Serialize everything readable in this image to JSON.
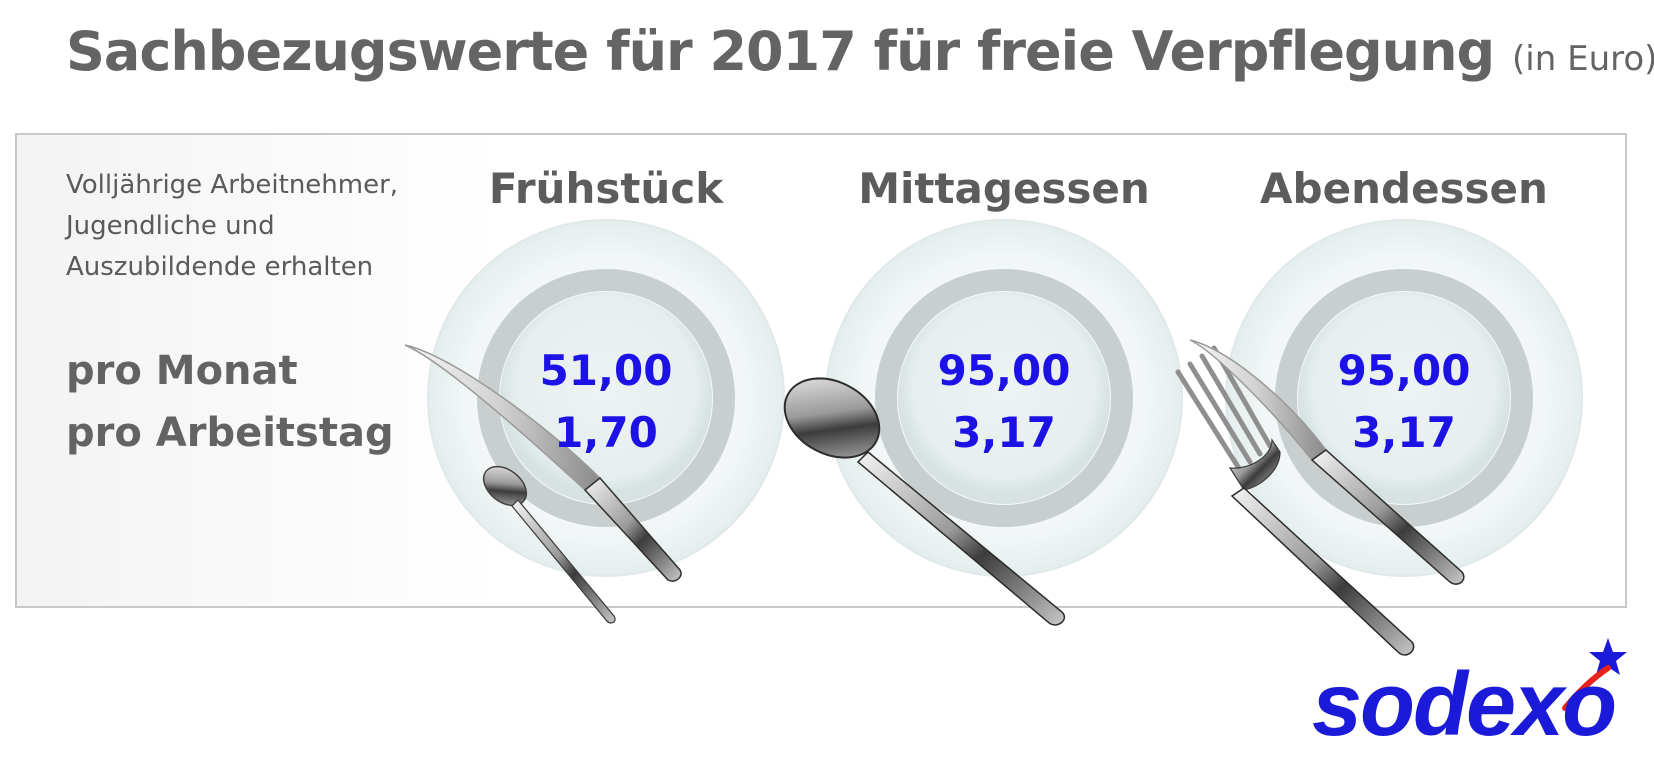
{
  "title": {
    "main": "Sachbezugswerte für 2017 für freie Verpflegung",
    "unit": "(in Euro)"
  },
  "intro": "Volljährige Arbeitnehmer, Jugendliche und Auszubildende erhalten",
  "row_labels": {
    "month": "pro Monat",
    "day": "pro Arbeitstag"
  },
  "meals": [
    {
      "name": "Frühstück",
      "per_month": "51,00",
      "per_day": "1,70"
    },
    {
      "name": "Mittagessen",
      "per_month": "95,00",
      "per_day": "3,17"
    },
    {
      "name": "Abendessen",
      "per_month": "95,00",
      "per_day": "3,17"
    }
  ],
  "colors": {
    "title": "#646464",
    "values": "#1c12e6",
    "logo": "#1a1ad8",
    "logo_star": "#1a1ad8",
    "logo_swoosh": "#e8231c"
  },
  "logo_text": "sodexo"
}
